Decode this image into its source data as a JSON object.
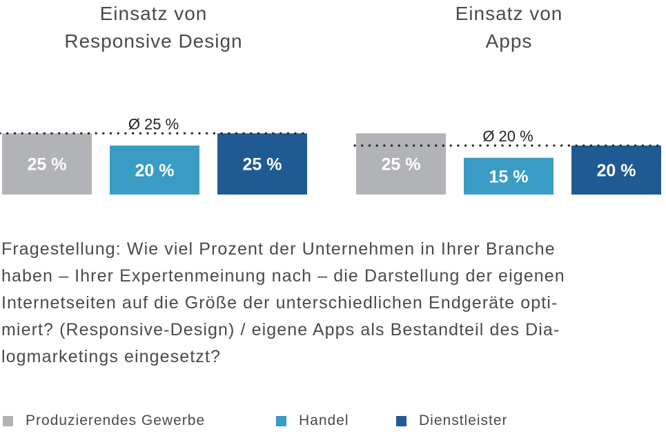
{
  "chart_data": [
    {
      "type": "bar",
      "title": [
        "Einsatz von",
        "Responsive Design"
      ],
      "categories": [
        "Produzierendes Gewerbe",
        "Handel",
        "Dienstleister"
      ],
      "values": [
        25,
        20,
        25
      ],
      "value_labels": [
        "25 %",
        "20 %",
        "25 %"
      ],
      "average": 25,
      "average_label": "Ø 25 %"
    },
    {
      "type": "bar",
      "title": [
        "Einsatz von",
        "Apps"
      ],
      "categories": [
        "Produzierendes Gewerbe",
        "Handel",
        "Dienstleister"
      ],
      "values": [
        25,
        15,
        20
      ],
      "value_labels": [
        "25 %",
        "15 %",
        "20 %"
      ],
      "average": 20,
      "average_label": "Ø 20 %"
    }
  ],
  "colors": {
    "Produzierendes Gewerbe": "#b1b3b6",
    "Handel": "#3a9cc5",
    "Dienstleister": "#1f5a93"
  },
  "question": [
    "Fragestellung: Wie viel Prozent der Unternehmen in Ihrer Branche",
    "haben – Ihrer Expertenmeinung nach – die Darstellung der eigenen",
    "Internetseiten auf die Größe der unterschiedlichen Endgeräte opti-",
    "miert? (Responsive-Design) / eigene Apps als Bestandteil des Dia-",
    "logmarketings eingesetzt?"
  ],
  "legend": [
    {
      "label": "Produzierendes Gewerbe",
      "color": "#b1b3b6"
    },
    {
      "label": "Handel",
      "color": "#3a9cc5"
    },
    {
      "label": "Dienstleister",
      "color": "#1f5a93"
    }
  ]
}
